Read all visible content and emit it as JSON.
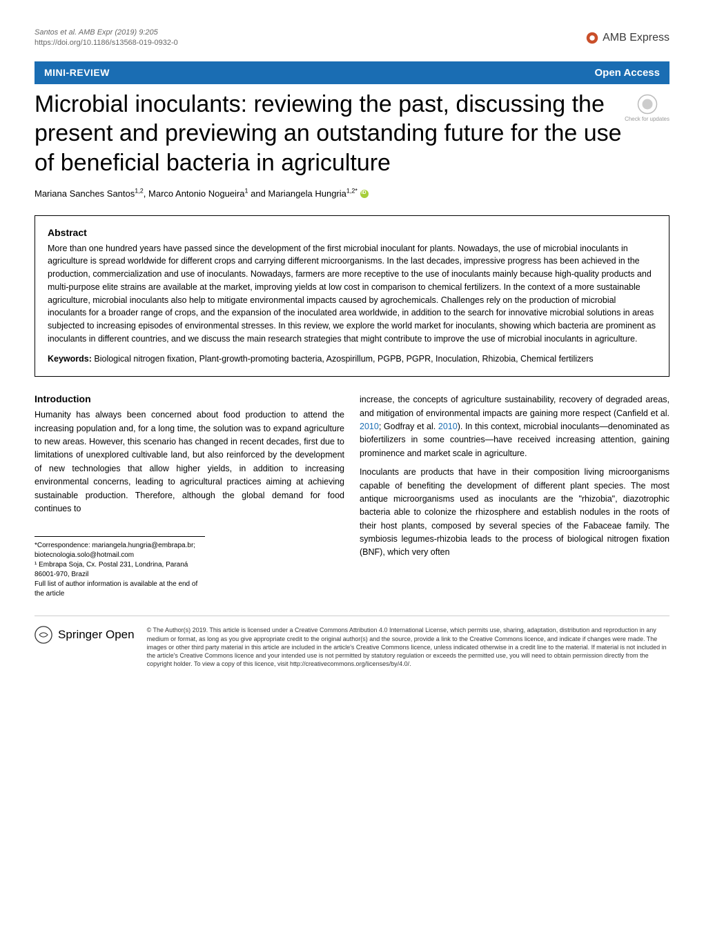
{
  "header": {
    "citation_line1": "Santos et al. AMB Expr     (2019) 9:205",
    "citation_line2": "https://doi.org/10.1186/s13568-019-0932-0",
    "journal_name": "AMB Express"
  },
  "banner": {
    "article_type": "MINI-REVIEW",
    "open_access": "Open Access"
  },
  "check_updates_label": "Check for updates",
  "title": "Microbial inoculants: reviewing the past, discussing the present and previewing an outstanding future for the use of beneficial bacteria in agriculture",
  "authors_html": "Mariana Sanches Santos<sup>1,2</sup>, Marco Antonio Nogueira<sup>1</sup> and Mariangela Hungria<sup>1,2*</sup>",
  "abstract": {
    "heading": "Abstract",
    "text": "More than one hundred years have passed since the development of the first microbial inoculant for plants. Nowadays, the use of microbial inoculants in agriculture is spread worldwide for different crops and carrying different microorganisms. In the last decades, impressive progress has been achieved in the production, commercialization and use of inoculants. Nowadays, farmers are more receptive to the use of inoculants mainly because high-quality products and multi-purpose elite strains are available at the market, improving yields at low cost in comparison to chemical fertilizers. In the context of a more sustainable agriculture, microbial inoculants also help to mitigate environmental impacts caused by agrochemicals. Challenges rely on the production of microbial inoculants for a broader range of crops, and the expansion of the inoculated area worldwide, in addition to the search for innovative microbial solutions in areas subjected to increasing episodes of environmental stresses. In this review, we explore the world market for inoculants, showing which bacteria are prominent as inoculants in different countries, and we discuss the main research strategies that might contribute to improve the use of microbial inoculants in agriculture.",
    "keywords_label": "Keywords:",
    "keywords": "Biological nitrogen fixation, Plant-growth-promoting bacteria, Azospirillum, PGPB, PGPR, Inoculation, Rhizobia, Chemical fertilizers"
  },
  "intro": {
    "heading": "Introduction",
    "col1": "Humanity has always been concerned about food production to attend the increasing population and, for a long time, the solution was to expand agriculture to new areas. However, this scenario has changed in recent decades, first due to limitations of unexplored cultivable land, but also reinforced by the development of new technologies that allow higher yields, in addition to increasing environmental concerns, leading to agricultural practices aiming at achieving sustainable production. Therefore, although the global demand for food continues to",
    "col2_p1": "increase, the concepts of agriculture sustainability, recovery of degraded areas, and mitigation of environmental impacts are gaining more respect (Canfield et al. 2010; Godfray et al. 2010). In this context, microbial inoculants—denominated as biofertilizers in some countries—have received increasing attention, gaining prominence and market scale in agriculture.",
    "col2_p2": "Inoculants are products that have in their composition living microorganisms capable of benefiting the development of different plant species. The most antique microorganisms used as inoculants are the \"rhizobia\", diazotrophic bacteria able to colonize the rhizosphere and establish nodules in the roots of their host plants, composed by several species of the Fabaceae family. The symbiosis legumes-rhizobia leads to the process of biological nitrogen fixation (BNF), which very often"
  },
  "correspondence": {
    "line1": "*Correspondence: mariangela.hungria@embrapa.br; biotecnologia.solo@hotmail.com",
    "line2": "¹ Embrapa Soja, Cx. Postal 231, Londrina, Paraná 86001-970, Brazil",
    "line3": "Full list of author information is available at the end of the article"
  },
  "footer": {
    "publisher": "Springer Open",
    "license": "© The Author(s) 2019. This article is licensed under a Creative Commons Attribution 4.0 International License, which permits use, sharing, adaptation, distribution and reproduction in any medium or format, as long as you give appropriate credit to the original author(s) and the source, provide a link to the Creative Commons licence, and indicate if changes were made. The images or other third party material in this article are included in the article's Creative Commons licence, unless indicated otherwise in a credit line to the material. If material is not included in the article's Creative Commons licence and your intended use is not permitted by statutory regulation or exceeds the permitted use, you will need to obtain permission directly from the copyright holder. To view a copy of this licence, visit http://creativecommons.org/licenses/by/4.0/."
  },
  "colors": {
    "banner_bg": "#1a6db3",
    "banner_text": "#ffffff",
    "link": "#1a6db3",
    "text": "#000000",
    "muted": "#666666"
  }
}
